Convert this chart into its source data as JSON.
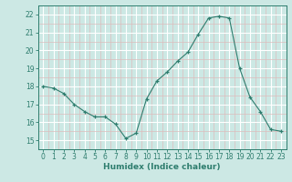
{
  "x": [
    0,
    1,
    2,
    3,
    4,
    5,
    6,
    7,
    8,
    9,
    10,
    11,
    12,
    13,
    14,
    15,
    16,
    17,
    18,
    19,
    20,
    21,
    22,
    23
  ],
  "y": [
    18.0,
    17.9,
    17.6,
    17.0,
    16.6,
    16.3,
    16.3,
    15.9,
    15.1,
    15.4,
    17.3,
    18.3,
    18.8,
    19.4,
    19.9,
    20.9,
    21.8,
    21.9,
    21.8,
    19.0,
    17.4,
    16.6,
    15.6,
    15.5
  ],
  "xlabel": "Humidex (Indice chaleur)",
  "xlim": [
    -0.5,
    23.5
  ],
  "ylim": [
    14.75,
    22.5
  ],
  "yticks": [
    15,
    16,
    17,
    18,
    19,
    20,
    21,
    22
  ],
  "xticks": [
    0,
    1,
    2,
    3,
    4,
    5,
    6,
    7,
    8,
    9,
    10,
    11,
    12,
    13,
    14,
    15,
    16,
    17,
    18,
    19,
    20,
    21,
    22,
    23
  ],
  "line_color": "#2e7d6e",
  "marker": "+",
  "bg_color": "#cce8e4",
  "grid_major_color": "#ffffff",
  "grid_minor_color": "#ddbcbc",
  "label_fontsize": 6.5,
  "tick_fontsize": 5.5
}
